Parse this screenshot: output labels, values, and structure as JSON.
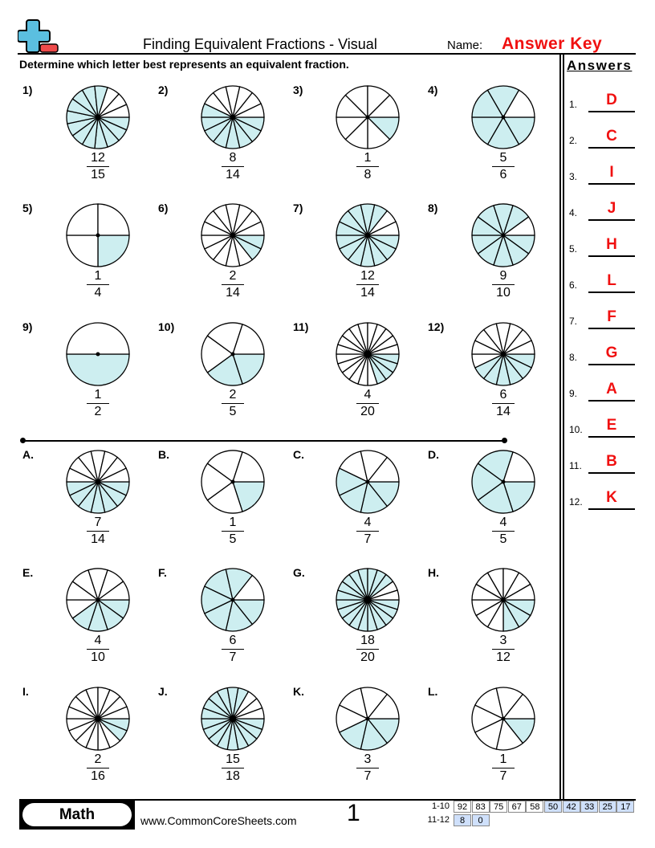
{
  "header": {
    "title": "Finding Equivalent Fractions - Visual",
    "name_label": "Name:",
    "name_value": "Answer Key",
    "instructions": "Determine which letter best represents an equivalent fraction.",
    "logo": "plus-minus-logo"
  },
  "colors": {
    "shade": "#cdeef0",
    "answer_red": "#f01010",
    "score_highlight": "#cfe0fb"
  },
  "questions": [
    {
      "label": "1)",
      "num": "12",
      "den": "15"
    },
    {
      "label": "2)",
      "num": "8",
      "den": "14"
    },
    {
      "label": "3)",
      "num": "1",
      "den": "8"
    },
    {
      "label": "4)",
      "num": "5",
      "den": "6"
    },
    {
      "label": "5)",
      "num": "1",
      "den": "4"
    },
    {
      "label": "6)",
      "num": "2",
      "den": "14"
    },
    {
      "label": "7)",
      "num": "12",
      "den": "14"
    },
    {
      "label": "8)",
      "num": "9",
      "den": "10"
    },
    {
      "label": "9)",
      "num": "1",
      "den": "2"
    },
    {
      "label": "10)",
      "num": "2",
      "den": "5"
    },
    {
      "label": "11)",
      "num": "4",
      "den": "20"
    },
    {
      "label": "12)",
      "num": "6",
      "den": "14"
    }
  ],
  "choices": [
    {
      "label": "A.",
      "num": "7",
      "den": "14"
    },
    {
      "label": "B.",
      "num": "1",
      "den": "5"
    },
    {
      "label": "C.",
      "num": "4",
      "den": "7"
    },
    {
      "label": "D.",
      "num": "4",
      "den": "5"
    },
    {
      "label": "E.",
      "num": "4",
      "den": "10"
    },
    {
      "label": "F.",
      "num": "6",
      "den": "7"
    },
    {
      "label": "G.",
      "num": "18",
      "den": "20"
    },
    {
      "label": "H.",
      "num": "3",
      "den": "12"
    },
    {
      "label": "I.",
      "num": "2",
      "den": "16"
    },
    {
      "label": "J.",
      "num": "15",
      "den": "18"
    },
    {
      "label": "K.",
      "num": "3",
      "den": "7"
    },
    {
      "label": "L.",
      "num": "1",
      "den": "7"
    }
  ],
  "answers": {
    "title": "Answers",
    "items": [
      {
        "num": "1.",
        "letter": "D"
      },
      {
        "num": "2.",
        "letter": "C"
      },
      {
        "num": "3.",
        "letter": "I"
      },
      {
        "num": "4.",
        "letter": "J"
      },
      {
        "num": "5.",
        "letter": "H"
      },
      {
        "num": "6.",
        "letter": "L"
      },
      {
        "num": "7.",
        "letter": "F"
      },
      {
        "num": "8.",
        "letter": "G"
      },
      {
        "num": "9.",
        "letter": "A"
      },
      {
        "num": "10.",
        "letter": "E"
      },
      {
        "num": "11.",
        "letter": "B"
      },
      {
        "num": "12.",
        "letter": "K"
      }
    ]
  },
  "footer": {
    "subject": "Math",
    "website": "www.CommonCoreSheets.com",
    "page_number": "1",
    "score_rows": [
      {
        "label": "1-10",
        "cells": [
          "92",
          "83",
          "75",
          "67",
          "58",
          "50",
          "42",
          "33",
          "25",
          "17"
        ],
        "highlight_from": 5
      },
      {
        "label": "11-12",
        "cells": [
          "8",
          "0"
        ],
        "highlight_from": 0
      }
    ]
  }
}
